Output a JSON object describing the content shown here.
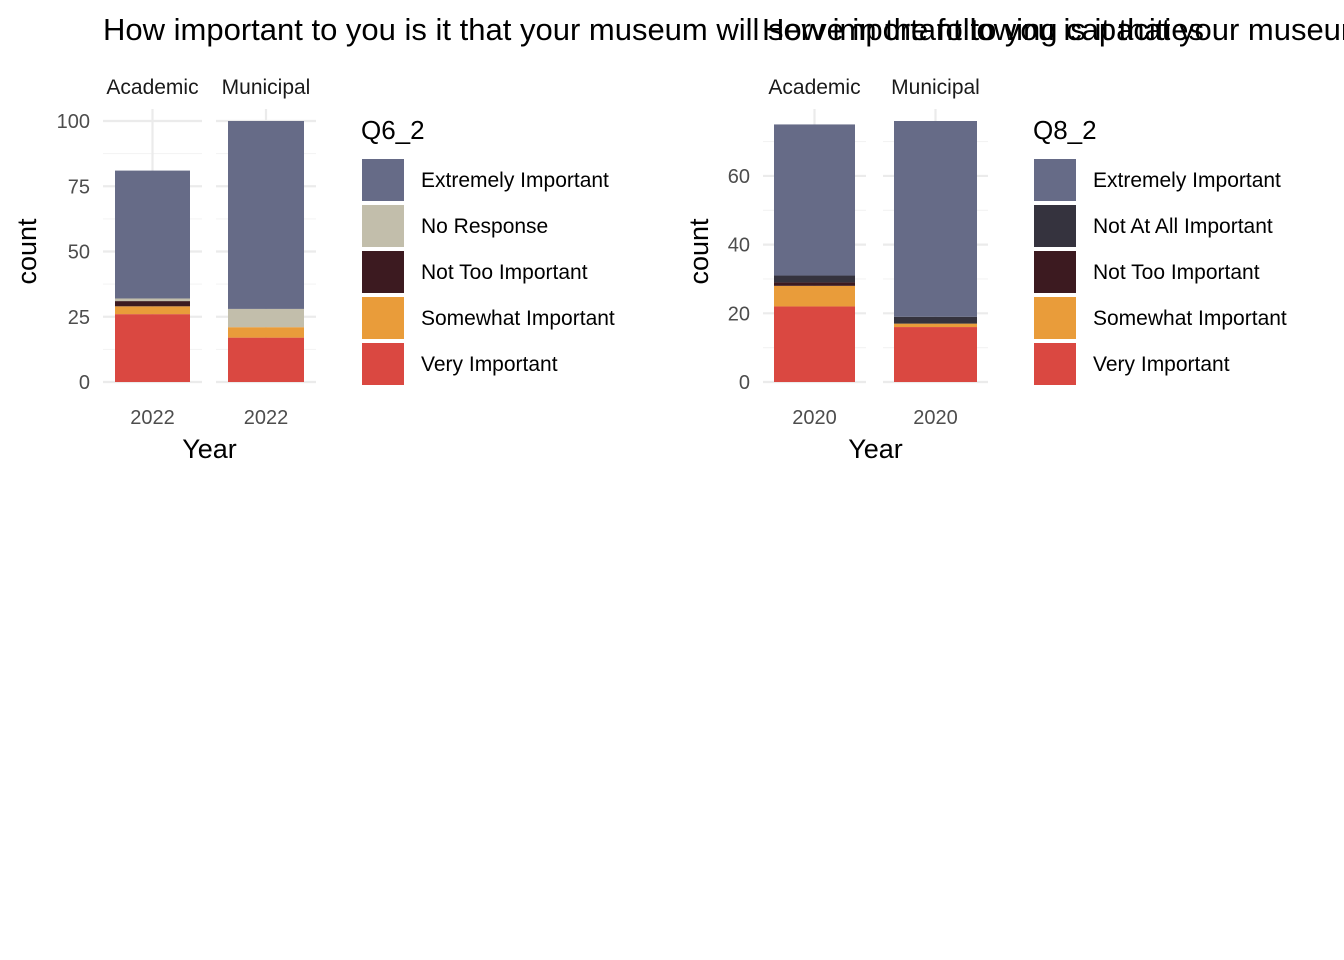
{
  "chart_data": [
    {
      "type": "bar",
      "stacked": true,
      "title": "How important to you is it that your museum will serve in the following capacities",
      "xlabel": "Year",
      "ylabel": "count",
      "ylim": [
        0,
        100
      ],
      "yticks": [
        0,
        25,
        50,
        75,
        100
      ],
      "grid": true,
      "legend_title": "Q6_2",
      "legend_position": "right",
      "panels": [
        {
          "strip": "Academic",
          "x": [
            "2022"
          ],
          "stack": [
            {
              "name": "Very Important",
              "value": 26
            },
            {
              "name": "Somewhat Important",
              "value": 3
            },
            {
              "name": "Not Too Important",
              "value": 2
            },
            {
              "name": "No Response",
              "value": 1
            },
            {
              "name": "Extremely Important",
              "value": 49
            }
          ]
        },
        {
          "strip": "Municipal",
          "x": [
            "2022"
          ],
          "stack": [
            {
              "name": "Very Important",
              "value": 17
            },
            {
              "name": "Somewhat Important",
              "value": 4
            },
            {
              "name": "Not Too Important",
              "value": 0
            },
            {
              "name": "No Response",
              "value": 7
            },
            {
              "name": "Extremely Important",
              "value": 72
            }
          ]
        }
      ],
      "legend": [
        {
          "name": "Extremely Important",
          "color": "#666b87"
        },
        {
          "name": "No Response",
          "color": "#c2beab"
        },
        {
          "name": "Not Too Important",
          "color": "#3c1a20"
        },
        {
          "name": "Somewhat Important",
          "color": "#e99c3a"
        },
        {
          "name": "Very Important",
          "color": "#da4841"
        }
      ]
    },
    {
      "type": "bar",
      "stacked": true,
      "title": "How important to you is it that your museum will serve in the following capacities",
      "xlabel": "Year",
      "ylabel": "count",
      "ylim": [
        0,
        76
      ],
      "yticks": [
        0,
        20,
        40,
        60
      ],
      "grid": true,
      "legend_title": "Q8_2",
      "legend_position": "right",
      "panels": [
        {
          "strip": "Academic",
          "x": [
            "2020"
          ],
          "stack": [
            {
              "name": "Very Important",
              "value": 22
            },
            {
              "name": "Somewhat Important",
              "value": 6
            },
            {
              "name": "Not Too Important",
              "value": 1
            },
            {
              "name": "Not At All Important",
              "value": 2
            },
            {
              "name": "Extremely Important",
              "value": 44
            }
          ]
        },
        {
          "strip": "Municipal",
          "x": [
            "2020"
          ],
          "stack": [
            {
              "name": "Very Important",
              "value": 16
            },
            {
              "name": "Somewhat Important",
              "value": 1
            },
            {
              "name": "Not Too Important",
              "value": 0
            },
            {
              "name": "Not At All Important",
              "value": 2
            },
            {
              "name": "Extremely Important",
              "value": 57
            }
          ]
        }
      ],
      "legend": [
        {
          "name": "Extremely Important",
          "color": "#666b87"
        },
        {
          "name": "Not At All Important",
          "color": "#35333e"
        },
        {
          "name": "Not Too Important",
          "color": "#3c1a20"
        },
        {
          "name": "Somewhat Important",
          "color": "#e99c3a"
        },
        {
          "name": "Very Important",
          "color": "#da4841"
        }
      ]
    }
  ]
}
